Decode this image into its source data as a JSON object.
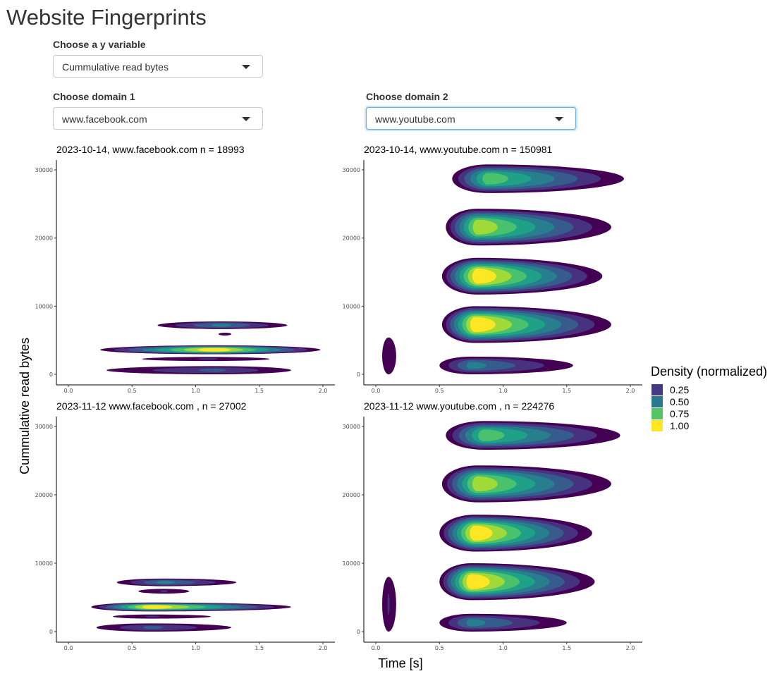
{
  "app": {
    "title": "Website Fingerprints"
  },
  "controls": {
    "y_variable": {
      "label": "Choose a y variable",
      "value": "Cummulative read bytes"
    },
    "domain1": {
      "label": "Choose domain 1",
      "value": "www.facebook.com"
    },
    "domain2": {
      "label": "Choose domain 2",
      "value": "www.youtube.com"
    }
  },
  "chart_data": {
    "type": "heatmap",
    "xlabel": "Time [s]",
    "ylabel": "Cummulative read bytes",
    "xlim": [
      0,
      2.0
    ],
    "ylim": [
      0,
      30000
    ],
    "x_ticks": [
      "0.0",
      "0.5",
      "1.0",
      "1.5",
      "2.0"
    ],
    "y_ticks": [
      "0",
      "10000",
      "20000",
      "30000"
    ],
    "legend": {
      "title": "Density (normalized)",
      "position": "right",
      "entries": [
        {
          "label": "0.25",
          "color": "#443a83"
        },
        {
          "label": "0.50",
          "color": "#2a788e"
        },
        {
          "label": "0.75",
          "color": "#53c567"
        },
        {
          "label": "1.00",
          "color": "#fde725"
        }
      ]
    },
    "fill_levels": [
      "#440154",
      "#46327e",
      "#365c8d",
      "#277f8e",
      "#1fa187",
      "#4ac16d",
      "#a0da39",
      "#fde725"
    ],
    "panels": [
      {
        "title": "2023-10-14, www.facebook.com n = 18993",
        "blobs": [
          {
            "x_start": 0.3,
            "x_end": 1.75,
            "y": 600,
            "y_half": 600,
            "peak_x": 1.15,
            "peak": 0.35
          },
          {
            "x_start": 0.25,
            "x_end": 1.98,
            "y": 3600,
            "y_half": 650,
            "peak_x": 1.15,
            "peak": 1.0
          },
          {
            "x_start": 0.58,
            "x_end": 1.58,
            "y": 2250,
            "y_half": 300,
            "peak_x": 1.1,
            "peak": 0.3
          },
          {
            "x_start": 0.7,
            "x_end": 1.72,
            "y": 7200,
            "y_half": 560,
            "peak_x": 1.2,
            "peak": 0.45
          },
          {
            "x_start": 1.18,
            "x_end": 1.28,
            "y": 5900,
            "y_half": 180,
            "peak_x": 1.23,
            "peak": 0.1
          }
        ]
      },
      {
        "title": "2023-10-14, www.youtube.com n = 150981",
        "blobs": [
          {
            "x_start": 0.05,
            "x_end": 0.16,
            "y": 2700,
            "y_half": 2700,
            "peak_x": 0.1,
            "peak": 0.15
          },
          {
            "x_start": 0.5,
            "x_end": 1.55,
            "y": 1300,
            "y_half": 1300,
            "peak_x": 0.75,
            "peak": 0.5
          },
          {
            "x_start": 0.52,
            "x_end": 1.85,
            "y": 7300,
            "y_half": 2700,
            "peak_x": 0.78,
            "peak": 1.0
          },
          {
            "x_start": 0.52,
            "x_end": 1.78,
            "y": 14400,
            "y_half": 2700,
            "peak_x": 0.8,
            "peak": 1.0
          },
          {
            "x_start": 0.55,
            "x_end": 1.85,
            "y": 21600,
            "y_half": 2700,
            "peak_x": 0.8,
            "peak": 0.9
          },
          {
            "x_start": 0.6,
            "x_end": 1.95,
            "y": 28700,
            "y_half": 2100,
            "peak_x": 0.88,
            "peak": 0.8
          }
        ]
      },
      {
        "title": "2023-11-12 www.facebook.com , n = 27002",
        "blobs": [
          {
            "x_start": 0.22,
            "x_end": 1.28,
            "y": 600,
            "y_half": 600,
            "peak_x": 0.65,
            "peak": 0.35
          },
          {
            "x_start": 0.18,
            "x_end": 1.75,
            "y": 3600,
            "y_half": 650,
            "peak_x": 0.65,
            "peak": 1.0
          },
          {
            "x_start": 0.35,
            "x_end": 1.12,
            "y": 2200,
            "y_half": 300,
            "peak_x": 0.65,
            "peak": 0.3
          },
          {
            "x_start": 0.38,
            "x_end": 1.32,
            "y": 7200,
            "y_half": 560,
            "peak_x": 0.75,
            "peak": 0.45
          },
          {
            "x_start": 0.55,
            "x_end": 0.95,
            "y": 5900,
            "y_half": 350,
            "peak_x": 0.75,
            "peak": 0.2
          }
        ]
      },
      {
        "title": "2023-11-12 www.youtube.com , n = 224276",
        "blobs": [
          {
            "x_start": 0.05,
            "x_end": 0.16,
            "y": 4000,
            "y_half": 4000,
            "peak_x": 0.1,
            "peak": 0.2
          },
          {
            "x_start": 0.5,
            "x_end": 1.5,
            "y": 1300,
            "y_half": 1300,
            "peak_x": 0.75,
            "peak": 0.5
          },
          {
            "x_start": 0.5,
            "x_end": 1.72,
            "y": 7300,
            "y_half": 2700,
            "peak_x": 0.75,
            "peak": 1.0
          },
          {
            "x_start": 0.5,
            "x_end": 1.7,
            "y": 14400,
            "y_half": 2700,
            "peak_x": 0.78,
            "peak": 1.0
          },
          {
            "x_start": 0.52,
            "x_end": 1.85,
            "y": 21600,
            "y_half": 2700,
            "peak_x": 0.8,
            "peak": 0.9
          },
          {
            "x_start": 0.55,
            "x_end": 1.92,
            "y": 28700,
            "y_half": 2100,
            "peak_x": 0.85,
            "peak": 0.8
          }
        ]
      }
    ]
  }
}
